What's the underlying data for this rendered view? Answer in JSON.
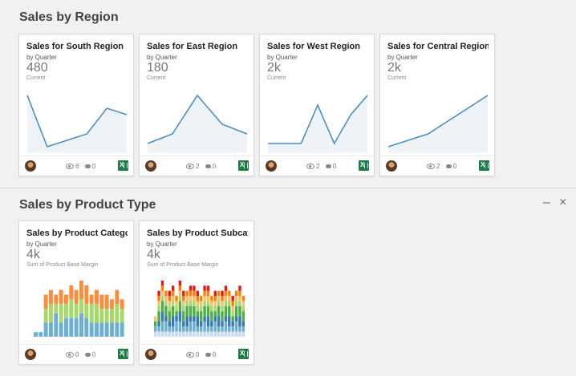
{
  "sections": [
    {
      "title": "Sales by Region",
      "cards": [
        {
          "title": "Sales for South Region",
          "subtitle": "by Quarter",
          "value": "480",
          "value_label": "Current",
          "views": "6",
          "comments": "0"
        },
        {
          "title": "Sales for East Region",
          "subtitle": "by Quarter",
          "value": "180",
          "value_label": "Current",
          "views": "2",
          "comments": "0"
        },
        {
          "title": "Sales for West Region",
          "subtitle": "by Quarter",
          "value": "2k",
          "value_label": "Current",
          "views": "2",
          "comments": "0"
        },
        {
          "title": "Sales for Central Region",
          "subtitle": "by Quarter",
          "value": "2k",
          "value_label": "Current",
          "views": "2",
          "comments": "0"
        }
      ]
    },
    {
      "title": "Sales by Product Type",
      "minimize": "–",
      "close": "×",
      "cards": [
        {
          "title": "Sales by Product Category",
          "subtitle": "by Quarter",
          "value": "4k",
          "value_label": "Sum of Product Base Margin",
          "views": "0",
          "comments": "0"
        },
        {
          "title": "Sales by Product Subcat...",
          "subtitle": "by Quarter",
          "value": "4k",
          "value_label": "Sum of Product Base Margin",
          "views": "0",
          "comments": "0"
        }
      ]
    }
  ],
  "colors": {
    "line": "#4a8fc4",
    "area": "#eef3f8",
    "stack": [
      "#6baed6",
      "#a6d96a",
      "#fd8d3c"
    ],
    "stack2": [
      "#c6dbef",
      "#6baed6",
      "#3a78b5",
      "#4daf4a",
      "#a6d96a",
      "#fdbf6f",
      "#ff7f00",
      "#e31a1c"
    ]
  },
  "chart_data": [
    {
      "type": "line",
      "series": [
        {
          "values": [
            9,
            1,
            2,
            3,
            7,
            6
          ]
        }
      ]
    },
    {
      "type": "line",
      "series": [
        {
          "values": [
            1,
            2,
            6,
            3,
            2
          ]
        }
      ]
    },
    {
      "type": "line",
      "series": [
        {
          "values": [
            1,
            1,
            1,
            5,
            1,
            4,
            6
          ]
        }
      ]
    },
    {
      "type": "line",
      "series": [
        {
          "values": [
            1,
            2,
            3,
            5,
            7,
            9
          ]
        }
      ]
    },
    {
      "type": "bar",
      "series": [
        {
          "values": [
            1,
            1,
            3,
            3,
            5,
            3,
            4,
            4,
            4,
            5,
            4,
            3,
            3,
            3,
            3,
            3,
            3,
            3
          ]
        },
        {
          "values": [
            0,
            0,
            3,
            4,
            2,
            4,
            3,
            4,
            3,
            3,
            3,
            4,
            4,
            3,
            3,
            3,
            4,
            3
          ]
        },
        {
          "values": [
            0,
            0,
            3,
            3,
            2,
            3,
            2,
            3,
            3,
            4,
            4,
            2,
            3,
            3,
            3,
            2,
            3,
            2
          ]
        }
      ]
    },
    {
      "type": "bar",
      "series": [
        {
          "values": [
            1,
            1,
            1,
            1,
            1,
            1,
            1,
            1,
            1,
            1,
            1,
            1,
            1,
            1,
            1,
            1,
            1,
            1,
            1,
            1,
            1,
            1,
            1,
            1,
            1,
            1
          ]
        },
        {
          "values": [
            1,
            1,
            2,
            2,
            1,
            1,
            2,
            2,
            1,
            1,
            2,
            2,
            1,
            1,
            2,
            1,
            1,
            2,
            1,
            1,
            2,
            1,
            1,
            2,
            1,
            1
          ]
        },
        {
          "values": [
            0,
            1,
            2,
            1,
            1,
            2,
            1,
            2,
            1,
            2,
            1,
            1,
            2,
            1,
            1,
            2,
            1,
            1,
            2,
            1,
            1,
            2,
            1,
            1,
            2,
            1
          ]
        },
        {
          "values": [
            1,
            2,
            2,
            2,
            2,
            2,
            1,
            2,
            2,
            2,
            2,
            2,
            1,
            2,
            2,
            2,
            2,
            1,
            2,
            2,
            2,
            2,
            1,
            2,
            2,
            2
          ]
        },
        {
          "values": [
            0,
            1,
            1,
            1,
            1,
            1,
            1,
            1,
            1,
            1,
            1,
            1,
            1,
            1,
            1,
            1,
            1,
            1,
            1,
            1,
            1,
            1,
            1,
            1,
            1,
            1
          ]
        },
        {
          "values": [
            1,
            1,
            1,
            1,
            1,
            1,
            1,
            1,
            1,
            1,
            1,
            1,
            1,
            1,
            1,
            1,
            1,
            1,
            1,
            1,
            1,
            1,
            1,
            1,
            1,
            1
          ]
        },
        {
          "values": [
            0,
            1,
            1,
            1,
            1,
            1,
            1,
            1,
            1,
            1,
            1,
            1,
            1,
            1,
            1,
            1,
            1,
            1,
            1,
            1,
            1,
            1,
            1,
            1,
            1,
            1
          ]
        },
        {
          "values": [
            0,
            1,
            1,
            0,
            1,
            1,
            0,
            1,
            1,
            0,
            1,
            1,
            1,
            0,
            1,
            1,
            0,
            1,
            0,
            1,
            1,
            0,
            1,
            0,
            1,
            0
          ]
        }
      ]
    }
  ]
}
